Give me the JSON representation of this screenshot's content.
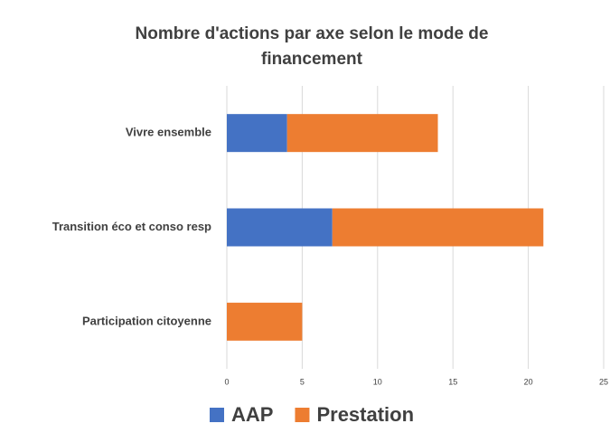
{
  "chart_data": {
    "type": "stacked_barh",
    "title": "Nombre d'actions par axe selon le mode de financement",
    "categories": [
      "Vivre ensemble",
      "Transition éco et conso resp",
      "Participation citoyenne"
    ],
    "series": [
      {
        "name": "AAP",
        "color": "#4472c4",
        "values": [
          4,
          7,
          0
        ]
      },
      {
        "name": "Prestation",
        "color": "#ed7d31",
        "values": [
          10,
          14,
          5
        ]
      }
    ],
    "xlim": [
      0,
      25
    ],
    "xticks": [
      0,
      5,
      10,
      15,
      20,
      25
    ],
    "grid": true,
    "legend": "bottom"
  }
}
